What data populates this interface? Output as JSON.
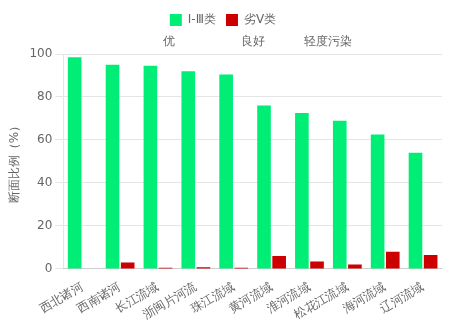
{
  "chart_data": {
    "type": "bar",
    "categories": [
      "西北诸河",
      "西南诸河",
      "长江流域",
      "浙闽片河流",
      "珠江流域",
      "黄河流域",
      "淮河流域",
      "松花江流域",
      "海河流域",
      "辽河流域"
    ],
    "series": [
      {
        "name": "I-Ⅲ类",
        "color": "#00EE76",
        "values": [
          98.5,
          95.0,
          94.5,
          92.0,
          90.5,
          76.0,
          72.5,
          69.0,
          62.5,
          54.0
        ]
      },
      {
        "name": "劣V类",
        "color": "#CC0000",
        "values": [
          0.0,
          3.0,
          0.5,
          0.8,
          0.5,
          6.0,
          3.5,
          2.0,
          8.0,
          6.5
        ]
      }
    ],
    "ylabel": "断面比例（%）",
    "ylim": [
      0,
      100
    ],
    "yticks": [
      0,
      20,
      40,
      60,
      80,
      100
    ],
    "grid": true,
    "legend": "top",
    "annotations": [
      "优",
      "良好",
      "轻度污染"
    ]
  }
}
